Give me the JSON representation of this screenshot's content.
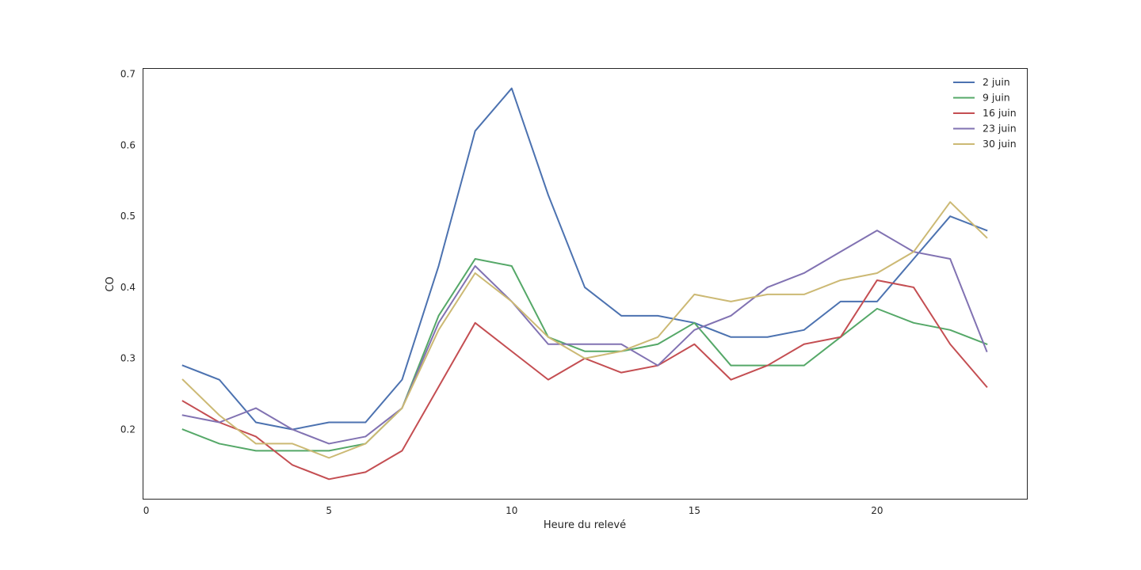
{
  "chart_data": {
    "type": "line",
    "title": "",
    "xlabel": "Heure du relevé",
    "ylabel": "CO",
    "xlim": [
      -0.1,
      24.1
    ],
    "ylim": [
      0.1025,
      0.7085
    ],
    "xticks": [
      0,
      5,
      10,
      15,
      20
    ],
    "yticks": [
      0.2,
      0.3,
      0.4,
      0.5,
      0.6,
      0.7
    ],
    "grid": false,
    "legend_position": "top-right",
    "x": [
      1,
      2,
      3,
      4,
      5,
      6,
      7,
      8,
      9,
      10,
      11,
      12,
      13,
      14,
      15,
      16,
      17,
      18,
      19,
      20,
      21,
      22,
      23
    ],
    "series": [
      {
        "name": "2 juin",
        "color": "#4c72b0",
        "values": [
          0.29,
          0.27,
          0.21,
          0.2,
          0.21,
          0.21,
          0.27,
          0.43,
          0.62,
          0.68,
          0.53,
          0.4,
          0.36,
          0.36,
          0.35,
          0.33,
          0.33,
          0.34,
          0.38,
          0.38,
          0.44,
          0.5,
          0.48
        ]
      },
      {
        "name": "9 juin",
        "color": "#55a868",
        "values": [
          0.2,
          0.18,
          0.17,
          0.17,
          0.17,
          0.18,
          0.23,
          0.36,
          0.44,
          0.43,
          0.33,
          0.31,
          0.31,
          0.32,
          0.35,
          0.29,
          0.29,
          0.29,
          0.33,
          0.37,
          0.35,
          0.34,
          0.32
        ]
      },
      {
        "name": "16 juin",
        "color": "#c44e52",
        "values": [
          0.24,
          0.21,
          0.19,
          0.15,
          0.13,
          0.14,
          0.17,
          0.26,
          0.35,
          0.31,
          0.27,
          0.3,
          0.28,
          0.29,
          0.32,
          0.27,
          0.29,
          0.32,
          0.33,
          0.41,
          0.4,
          0.32,
          0.26
        ]
      },
      {
        "name": "23 juin",
        "color": "#8172b2",
        "values": [
          0.22,
          0.21,
          0.23,
          0.2,
          0.18,
          0.19,
          0.23,
          0.35,
          0.43,
          0.38,
          0.32,
          0.32,
          0.32,
          0.29,
          0.34,
          0.36,
          0.4,
          0.42,
          0.45,
          0.48,
          0.45,
          0.44,
          0.31
        ]
      },
      {
        "name": "30 juin",
        "color": "#ccb974",
        "values": [
          0.27,
          0.22,
          0.18,
          0.18,
          0.16,
          0.18,
          0.23,
          0.34,
          0.42,
          0.38,
          0.33,
          0.3,
          0.31,
          0.33,
          0.39,
          0.38,
          0.39,
          0.39,
          0.41,
          0.42,
          0.45,
          0.52,
          0.47
        ]
      }
    ]
  }
}
